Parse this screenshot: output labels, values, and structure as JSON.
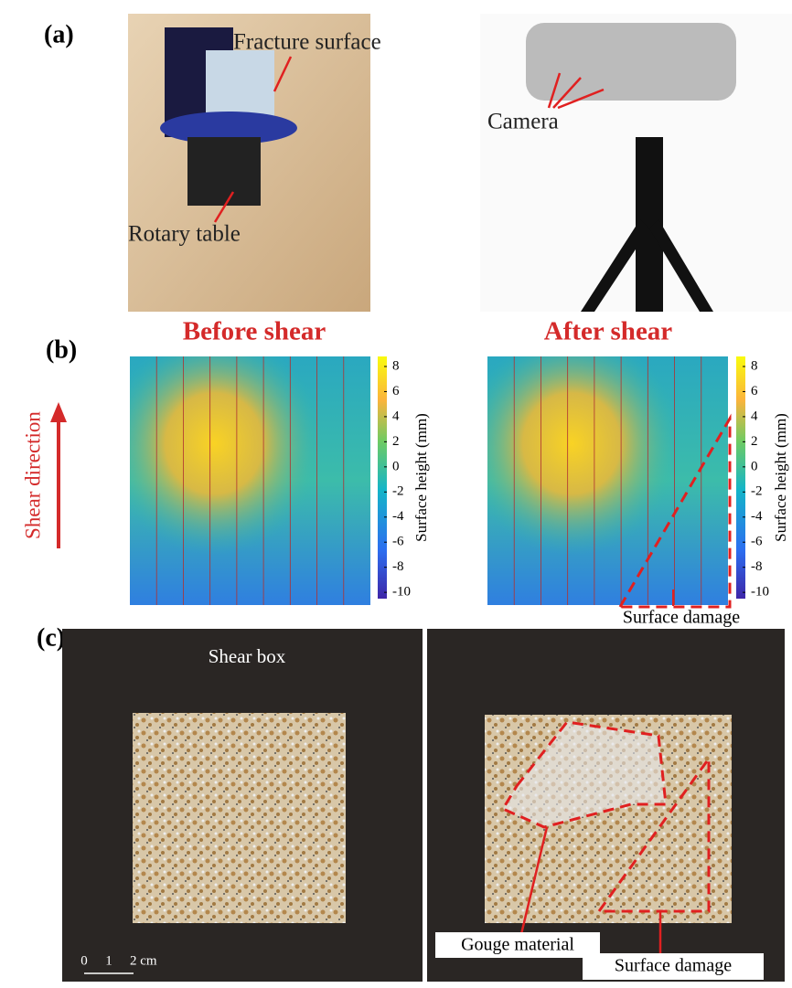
{
  "panel_a": {
    "label": "(a)",
    "annotations": [
      "Fracture surface",
      "Rotary table",
      "Camera"
    ]
  },
  "panel_b": {
    "label": "(b)",
    "titles": [
      "Before shear",
      "After shear"
    ],
    "side_label": "Shear direction",
    "colorbar": {
      "label": "Surface height (mm)",
      "lim": [
        -10.5,
        8.8
      ],
      "ticks": [
        8,
        6,
        4,
        2,
        0,
        -2,
        -4,
        -6,
        -8,
        -10
      ]
    },
    "annotation": "Surface damage"
  },
  "panel_c": {
    "label": "(c)",
    "annotations": [
      "Shear box",
      "Gouge material",
      "Surface damage"
    ],
    "scale_bar": [
      "0",
      "1",
      "2 cm"
    ]
  }
}
